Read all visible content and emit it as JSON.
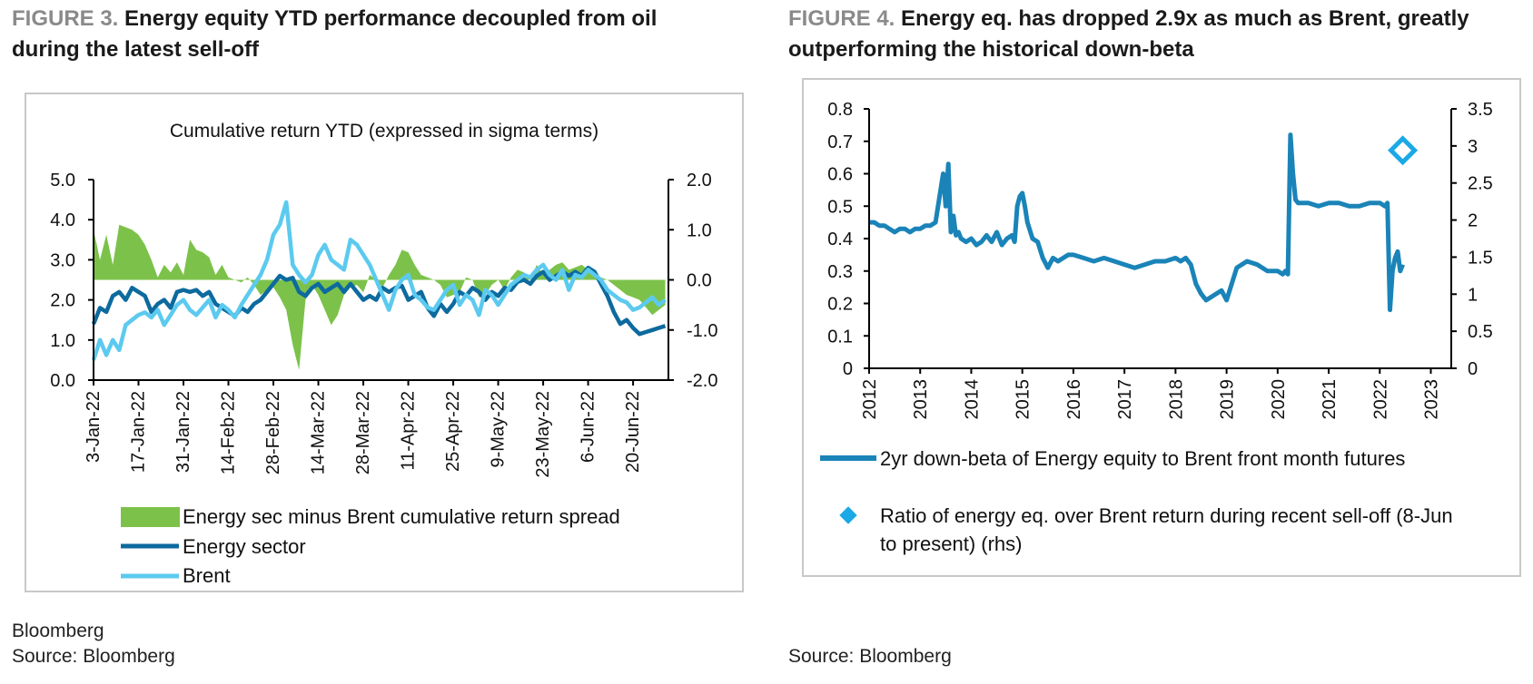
{
  "figures": [
    {
      "label": "FIGURE 3.",
      "title": "Energy equity YTD performance decoupled from oil during the latest sell-off",
      "source_lines": [
        "Bloomberg",
        "Source: Bloomberg"
      ]
    },
    {
      "label": "FIGURE 4.",
      "title": "Energy eq. has dropped 2.9x as much as Brent, greatly outperforming the historical down-beta",
      "source_lines": [
        "Source: Bloomberg"
      ]
    }
  ],
  "chart_data": [
    {
      "type": "line",
      "title": "Cumulative return YTD (expressed in sigma terms)",
      "categories": [
        "3-Jan-22",
        "17-Jan-22",
        "31-Jan-22",
        "14-Feb-22",
        "28-Feb-22",
        "14-Mar-22",
        "28-Mar-22",
        "11-Apr-22",
        "25-Apr-22",
        "9-May-22",
        "23-May-22",
        "6-Jun-22",
        "20-Jun-22"
      ],
      "x_range": [
        0,
        179
      ],
      "y_left": {
        "min": 0,
        "max": 5,
        "ticks": [
          "0.0",
          "1.0",
          "2.0",
          "3.0",
          "4.0",
          "5.0"
        ]
      },
      "y_right": {
        "min": -2,
        "max": 2,
        "ticks": [
          "-2.0",
          "-1.0",
          "0.0",
          "1.0",
          "2.0"
        ]
      },
      "series": [
        {
          "name": "Energy sec minus Brent cumulative return spread",
          "axis": "right",
          "style": "area",
          "color": "#7cc24a",
          "x": [
            0,
            2,
            4,
            6,
            8,
            10,
            12,
            14,
            16,
            18,
            20,
            22,
            24,
            26,
            28,
            30,
            32,
            34,
            36,
            38,
            40,
            42,
            44,
            46,
            48,
            50,
            52,
            54,
            56,
            58,
            60,
            62,
            64,
            66,
            68,
            70,
            72,
            74,
            76,
            78,
            80,
            82,
            84,
            86,
            88,
            90,
            92,
            94,
            96,
            98,
            100,
            102,
            104,
            106,
            108,
            110,
            112,
            114,
            116,
            118,
            120,
            122,
            124,
            126,
            128,
            130,
            132,
            134,
            136,
            138,
            140,
            142,
            144,
            146,
            148,
            150,
            152,
            154,
            156,
            158,
            160,
            162,
            164,
            166,
            168,
            170,
            172,
            174,
            176,
            178
          ],
          "values": [
            1.0,
            0.4,
            0.9,
            0.3,
            1.1,
            1.05,
            1.0,
            0.9,
            0.7,
            0.4,
            0.05,
            0.3,
            0.15,
            0.35,
            0.1,
            0.8,
            0.6,
            0.55,
            0.45,
            0.1,
            0.3,
            0.05,
            0.0,
            -0.05,
            0.05,
            -0.1,
            -0.3,
            -0.2,
            -0.15,
            -0.35,
            -0.6,
            -1.3,
            -1.8,
            -0.4,
            -0.1,
            -0.3,
            -0.6,
            -0.9,
            -0.7,
            -0.3,
            -0.15,
            -0.1,
            -0.25,
            0.1,
            0.0,
            -0.15,
            0.1,
            0.3,
            0.6,
            0.55,
            0.3,
            0.1,
            0.05,
            0.0,
            -0.1,
            -0.35,
            -0.3,
            -0.25,
            0.05,
            0.0,
            -0.35,
            -0.3,
            -0.1,
            0.0,
            -0.2,
            0.05,
            0.2,
            0.15,
            0.0,
            0.3,
            0.1,
            0.2,
            0.3,
            0.35,
            0.2,
            0.25,
            0.3,
            0.2,
            0.1,
            0.05,
            0.0,
            -0.1,
            -0.2,
            -0.3,
            -0.35,
            -0.4,
            -0.55,
            -0.7,
            -0.6,
            -0.5
          ]
        },
        {
          "name": "Energy sector",
          "axis": "left",
          "style": "line",
          "color": "#0d6a9e",
          "x": [
            0,
            2,
            4,
            6,
            8,
            10,
            12,
            14,
            16,
            18,
            20,
            22,
            24,
            26,
            28,
            30,
            32,
            34,
            36,
            38,
            40,
            42,
            44,
            46,
            48,
            50,
            52,
            54,
            56,
            58,
            60,
            62,
            64,
            66,
            68,
            70,
            72,
            74,
            76,
            78,
            80,
            82,
            84,
            86,
            88,
            90,
            92,
            94,
            96,
            98,
            100,
            102,
            104,
            106,
            108,
            110,
            112,
            114,
            116,
            118,
            120,
            122,
            124,
            126,
            128,
            130,
            132,
            134,
            136,
            138,
            140,
            142,
            144,
            146,
            148,
            150,
            152,
            154,
            156,
            158,
            160,
            162,
            164,
            166,
            168,
            170,
            172,
            174,
            176,
            178
          ],
          "values": [
            1.4,
            1.8,
            1.7,
            2.1,
            2.2,
            2.0,
            2.3,
            2.2,
            2.1,
            1.7,
            1.9,
            2.0,
            1.8,
            2.2,
            2.25,
            2.2,
            2.25,
            2.1,
            2.2,
            1.9,
            1.8,
            1.7,
            1.6,
            1.8,
            1.7,
            1.9,
            2.0,
            2.2,
            2.4,
            2.6,
            2.5,
            2.55,
            2.2,
            2.1,
            2.3,
            2.4,
            2.2,
            2.3,
            2.4,
            2.2,
            2.4,
            2.2,
            2.0,
            2.1,
            2.0,
            2.3,
            2.2,
            2.3,
            2.35,
            2.0,
            2.1,
            2.2,
            1.8,
            1.6,
            1.9,
            1.7,
            1.9,
            2.2,
            2.1,
            2.3,
            2.2,
            2.0,
            2.2,
            2.1,
            2.3,
            2.25,
            2.45,
            2.5,
            2.4,
            2.6,
            2.7,
            2.5,
            2.6,
            2.7,
            2.6,
            2.7,
            2.6,
            2.8,
            2.7,
            2.4,
            2.1,
            1.7,
            1.4,
            1.5,
            1.3,
            1.15,
            1.2,
            1.25,
            1.3,
            1.35
          ]
        },
        {
          "name": "Brent",
          "axis": "right",
          "style": "line",
          "color": "#5ccaef",
          "x": [
            0,
            2,
            4,
            6,
            8,
            10,
            12,
            14,
            16,
            18,
            20,
            22,
            24,
            26,
            28,
            30,
            32,
            34,
            36,
            38,
            40,
            42,
            44,
            46,
            48,
            50,
            52,
            54,
            56,
            58,
            60,
            62,
            64,
            66,
            68,
            70,
            72,
            74,
            76,
            78,
            80,
            82,
            84,
            86,
            88,
            90,
            92,
            94,
            96,
            98,
            100,
            102,
            104,
            106,
            108,
            110,
            112,
            114,
            116,
            118,
            120,
            122,
            124,
            126,
            128,
            130,
            132,
            134,
            136,
            138,
            140,
            142,
            144,
            146,
            148,
            150,
            152,
            154,
            156,
            158,
            160,
            162,
            164,
            166,
            168,
            170,
            172,
            174,
            176,
            178
          ],
          "values": [
            -1.6,
            -1.2,
            -1.5,
            -1.2,
            -1.4,
            -0.9,
            -0.8,
            -0.7,
            -0.65,
            -0.75,
            -0.6,
            -0.9,
            -0.7,
            -0.5,
            -0.4,
            -0.6,
            -0.7,
            -0.55,
            -0.4,
            -0.75,
            -0.5,
            -0.6,
            -0.75,
            -0.5,
            -0.3,
            -0.1,
            0.1,
            0.4,
            0.9,
            1.1,
            1.55,
            0.3,
            0.1,
            -0.05,
            0.1,
            0.5,
            0.7,
            0.4,
            0.3,
            0.2,
            0.8,
            0.7,
            0.5,
            0.3,
            0.0,
            -0.3,
            -0.6,
            -0.2,
            0.0,
            0.1,
            -0.3,
            -0.4,
            -0.55,
            -0.6,
            -0.4,
            -0.2,
            -0.1,
            -0.5,
            -0.3,
            -0.4,
            -0.7,
            -0.2,
            -0.3,
            -0.5,
            -0.3,
            -0.1,
            0.0,
            0.1,
            0.05,
            0.2,
            0.3,
            0.1,
            0.0,
            0.2,
            -0.2,
            0.1,
            0.05,
            0.2,
            0.1,
            0.0,
            -0.2,
            -0.3,
            -0.4,
            -0.45,
            -0.6,
            -0.55,
            -0.45,
            -0.35,
            -0.5,
            -0.4
          ]
        }
      ],
      "legend": [
        "Energy sec minus Brent cumulative return spread",
        "Energy sector",
        "Brent"
      ]
    },
    {
      "type": "line",
      "title": "",
      "x_label_ticks": [
        "2012",
        "2013",
        "2014",
        "2015",
        "2016",
        "2017",
        "2018",
        "2019",
        "2020",
        "2021",
        "2022",
        "2023"
      ],
      "x_range": [
        2012,
        2023.4
      ],
      "y_left": {
        "min": 0,
        "max": 0.8,
        "ticks": [
          "0",
          "0.1",
          "0.2",
          "0.3",
          "0.4",
          "0.5",
          "0.6",
          "0.7",
          "0.8"
        ]
      },
      "y_right": {
        "min": 0,
        "max": 3.5,
        "ticks": [
          "0",
          "0.5",
          "1",
          "1.5",
          "2",
          "2.5",
          "3",
          "3.5"
        ]
      },
      "series": [
        {
          "name": "2yr down-beta of Energy equity to Brent front month futures",
          "axis": "left",
          "style": "line",
          "color": "#1a84b8",
          "x": [
            2012.0,
            2012.1,
            2012.2,
            2012.3,
            2012.4,
            2012.5,
            2012.6,
            2012.7,
            2012.8,
            2012.9,
            2013.0,
            2013.1,
            2013.2,
            2013.3,
            2013.4,
            2013.45,
            2013.5,
            2013.55,
            2013.6,
            2013.65,
            2013.7,
            2013.75,
            2013.8,
            2013.9,
            2014.0,
            2014.1,
            2014.2,
            2014.3,
            2014.4,
            2014.5,
            2014.6,
            2014.7,
            2014.8,
            2014.85,
            2014.9,
            2014.95,
            2015.0,
            2015.05,
            2015.1,
            2015.2,
            2015.3,
            2015.4,
            2015.5,
            2015.6,
            2015.7,
            2015.8,
            2015.9,
            2016.0,
            2016.2,
            2016.4,
            2016.6,
            2016.8,
            2017.0,
            2017.2,
            2017.4,
            2017.6,
            2017.8,
            2018.0,
            2018.1,
            2018.2,
            2018.3,
            2018.4,
            2018.5,
            2018.6,
            2018.7,
            2018.8,
            2018.9,
            2019.0,
            2019.2,
            2019.4,
            2019.6,
            2019.8,
            2020.0,
            2020.1,
            2020.15,
            2020.2,
            2020.25,
            2020.3,
            2020.35,
            2020.4,
            2020.6,
            2020.8,
            2021.0,
            2021.2,
            2021.4,
            2021.6,
            2021.8,
            2022.0,
            2022.1,
            2022.15,
            2022.2,
            2022.25,
            2022.3,
            2022.35,
            2022.4,
            2022.45
          ],
          "values": [
            0.45,
            0.45,
            0.44,
            0.44,
            0.43,
            0.42,
            0.43,
            0.43,
            0.42,
            0.43,
            0.43,
            0.44,
            0.44,
            0.45,
            0.55,
            0.6,
            0.5,
            0.63,
            0.42,
            0.47,
            0.41,
            0.42,
            0.4,
            0.39,
            0.4,
            0.38,
            0.39,
            0.41,
            0.39,
            0.42,
            0.38,
            0.4,
            0.41,
            0.39,
            0.5,
            0.53,
            0.54,
            0.5,
            0.45,
            0.4,
            0.39,
            0.34,
            0.31,
            0.34,
            0.33,
            0.34,
            0.35,
            0.35,
            0.34,
            0.33,
            0.34,
            0.33,
            0.32,
            0.31,
            0.32,
            0.33,
            0.33,
            0.34,
            0.33,
            0.34,
            0.32,
            0.26,
            0.23,
            0.21,
            0.22,
            0.23,
            0.24,
            0.21,
            0.31,
            0.33,
            0.32,
            0.3,
            0.3,
            0.29,
            0.3,
            0.29,
            0.72,
            0.6,
            0.52,
            0.51,
            0.51,
            0.5,
            0.51,
            0.51,
            0.5,
            0.5,
            0.51,
            0.51,
            0.5,
            0.51,
            0.18,
            0.3,
            0.34,
            0.36,
            0.3,
            0.32
          ]
        },
        {
          "name": "Ratio of energy eq. over Brent return during recent sell-off (8-Jun to present) (rhs)",
          "axis": "right",
          "style": "marker",
          "color": "#1aa9e6",
          "x": [
            2022.45
          ],
          "values": [
            2.94
          ]
        }
      ],
      "legend": [
        "2yr down-beta of Energy equity to Brent front month futures",
        "Ratio of energy eq. over Brent return during recent sell-off (8-Jun to present) (rhs)"
      ]
    }
  ]
}
